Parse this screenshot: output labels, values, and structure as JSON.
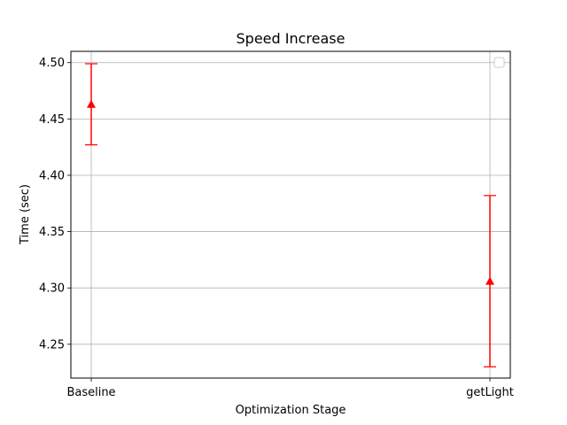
{
  "chart_data": {
    "type": "errorbar",
    "title": "Speed Increase",
    "xlabel": "Optimization Stage",
    "ylabel": "Time (sec)",
    "categories": [
      "Baseline",
      "getLight"
    ],
    "series": [
      {
        "values": [
          4.463,
          4.306
        ],
        "errors": [
          0.036,
          0.076
        ],
        "color": "#ff0000",
        "marker": "triangle-up"
      }
    ],
    "ylim": [
      4.22,
      4.51
    ],
    "yticks": [
      4.25,
      4.3,
      4.35,
      4.4,
      4.45,
      4.5
    ],
    "ytick_labels": [
      "4.25",
      "4.30",
      "4.35",
      "4.40",
      "4.45",
      "4.50"
    ],
    "grid": true,
    "legend": "top-right (empty)"
  }
}
